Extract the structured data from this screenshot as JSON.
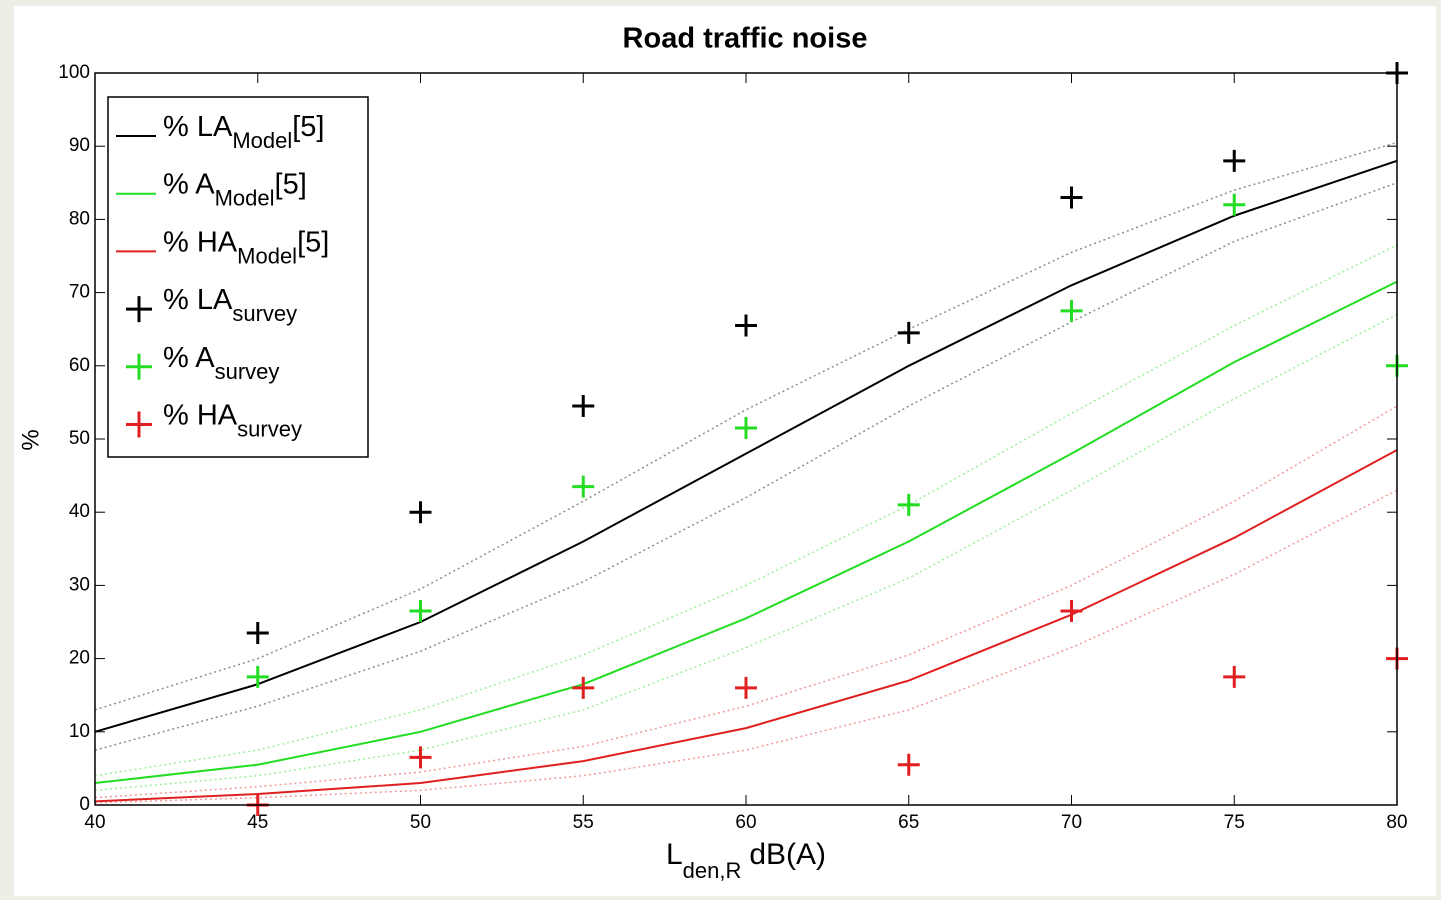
{
  "chart_data": {
    "type": "line",
    "title": "Road traffic noise",
    "x_label": {
      "main": "L",
      "sub": "den,R",
      "unit": "dB(A)"
    },
    "y_label": "%",
    "xlim": [
      40,
      80
    ],
    "ylim": [
      0,
      100
    ],
    "xticks": [
      40,
      45,
      50,
      55,
      60,
      65,
      70,
      75,
      80
    ],
    "yticks": [
      0,
      10,
      20,
      30,
      40,
      50,
      60,
      70,
      80,
      90,
      100
    ],
    "grid": false,
    "legend": "upper left",
    "series": [
      {
        "name": "% LA",
        "name_sub": "Model",
        "name_suffix": "[5]",
        "style": "line",
        "color": "#000000",
        "x": [
          40,
          45,
          50,
          55,
          60,
          65,
          70,
          75,
          80
        ],
        "values": [
          10,
          16.5,
          25,
          36,
          48,
          60,
          71,
          80.5,
          88
        ],
        "upper": [
          13,
          20,
          29.5,
          41.5,
          54,
          65,
          75.5,
          84,
          90.5
        ],
        "lower": [
          7.5,
          13.5,
          21,
          30.5,
          42,
          54.5,
          66,
          77,
          85
        ]
      },
      {
        "name": "% A",
        "name_sub": "Model",
        "name_suffix": "[5]",
        "style": "line",
        "color": "#22dd22",
        "x": [
          40,
          45,
          50,
          55,
          60,
          65,
          70,
          75,
          80
        ],
        "values": [
          3,
          5.5,
          10,
          16.5,
          25.5,
          36,
          48,
          60.5,
          71.5
        ],
        "upper": [
          4,
          7.5,
          13,
          20.5,
          30,
          41,
          53.5,
          65.5,
          76.5
        ],
        "lower": [
          2,
          4,
          7.5,
          13,
          21.5,
          31,
          43,
          55.5,
          67
        ]
      },
      {
        "name": "% HA",
        "name_sub": "Model",
        "name_suffix": "[5]",
        "style": "line",
        "color": "#e02020",
        "x": [
          40,
          45,
          50,
          55,
          60,
          65,
          70,
          75,
          80
        ],
        "values": [
          0.5,
          1.5,
          3,
          6,
          10.5,
          17,
          26,
          36.5,
          48.5
        ],
        "upper": [
          1,
          2.5,
          4.5,
          8,
          13.5,
          20.5,
          30,
          41.5,
          54.5
        ],
        "lower": [
          0.3,
          1,
          2,
          4,
          7.5,
          13,
          21.5,
          31.5,
          43
        ]
      },
      {
        "name": "% LA",
        "name_sub": "survey",
        "style": "plus",
        "color": "#000000",
        "x": [
          45,
          50,
          55,
          60,
          65,
          70,
          75,
          80
        ],
        "values": [
          23.5,
          40,
          54.5,
          65.5,
          64.5,
          83,
          88,
          100
        ]
      },
      {
        "name": "% A",
        "name_sub": "survey",
        "style": "plus",
        "color": "#22dd22",
        "x": [
          45,
          50,
          55,
          60,
          65,
          70,
          75,
          80
        ],
        "values": [
          17.5,
          26.5,
          43.5,
          51.5,
          41,
          67.5,
          82,
          60
        ]
      },
      {
        "name": "% HA",
        "name_sub": "survey",
        "style": "plus",
        "color": "#e02020",
        "x": [
          45,
          50,
          55,
          60,
          65,
          70,
          75,
          80
        ],
        "values": [
          0,
          6.5,
          16,
          16,
          5.5,
          26.5,
          17.5,
          20
        ]
      }
    ]
  }
}
